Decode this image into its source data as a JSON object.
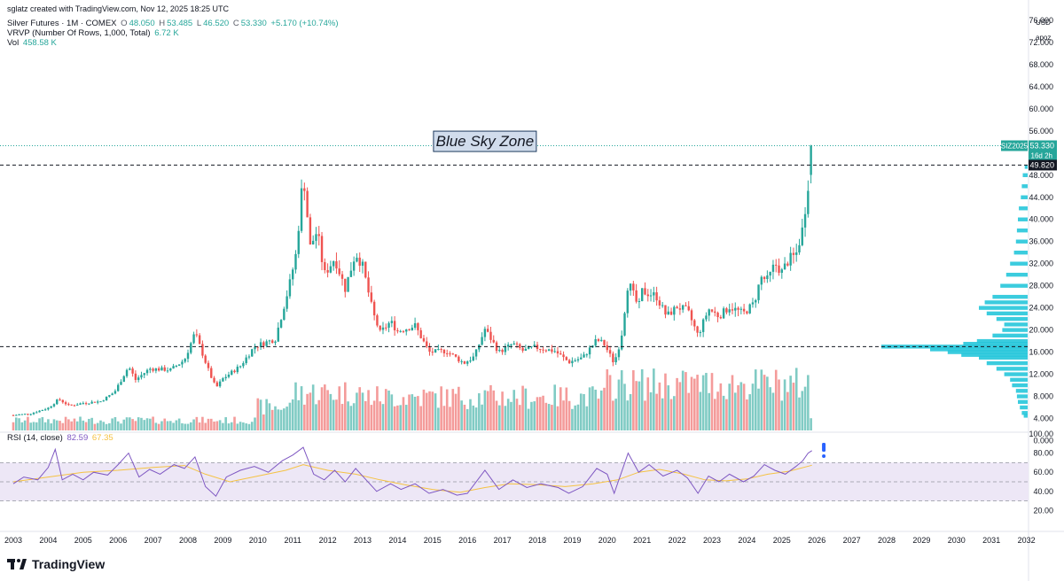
{
  "header": {
    "caption": "sglatz created with TradingView.com, Nov 12, 2025 18:25 UTC",
    "symbol": "Silver Futures · 1M · COMEX",
    "ohlc": {
      "o_label": "O",
      "o": "48.050",
      "h_label": "H",
      "h": "53.485",
      "l_label": "L",
      "l": "46.520",
      "c_label": "C",
      "c": "53.330",
      "change": "+5.170 (+10.74%)"
    },
    "vrvp_label": "VRVP (Number Of Rows, 1,000, Total)",
    "vrvp_value": "6.72 K",
    "vol_label": "Vol",
    "vol_value": "458.58 K",
    "rsi_label": "RSI (14, close)",
    "rsi_value": "82.59",
    "rsi_ma_value": "67.35"
  },
  "price_scale": {
    "currency": "USD",
    "timezone": "apoz"
  },
  "brand": "TradingView",
  "colors": {
    "up": "#26a69a",
    "down": "#ef5350",
    "vol_up": "#80cbc4",
    "vol_down": "#f49b9a",
    "vrvp": "#26c6da",
    "rsi_line": "#7e57c2",
    "rsi_ma": "#f5c242",
    "rsi_band": "#ede7f6",
    "annotation_bg": "#d1dcec",
    "annotation_border": "#1e3a5f",
    "marker_blue": "#2962ff"
  },
  "chart_data": {
    "type": "candlestick",
    "symbol": "SIZ2025",
    "interval": "1M",
    "y_axis": {
      "min": 2,
      "max": 78,
      "ticks": [
        "76.000",
        "72.000",
        "68.000",
        "64.000",
        "60.000",
        "56.000",
        "52.000",
        "48.000",
        "44.000",
        "40.000",
        "36.000",
        "32.000",
        "28.000",
        "24.000",
        "20.000",
        "16.000",
        "12.000",
        "8.000",
        "4.000",
        "0.000"
      ]
    },
    "x_axis": {
      "labels": [
        "2003",
        "2004",
        "2005",
        "2006",
        "2007",
        "2008",
        "2009",
        "2010",
        "2011",
        "2012",
        "2013",
        "2014",
        "2015",
        "2016",
        "2017",
        "2018",
        "2019",
        "2020",
        "2021",
        "2022",
        "2023",
        "2024",
        "2025",
        "2026",
        "2027",
        "2028",
        "2029",
        "2030",
        "2031",
        "2032"
      ]
    },
    "price_path": [
      [
        2003.0,
        4.6
      ],
      [
        2003.5,
        4.9
      ],
      [
        2004.0,
        5.9
      ],
      [
        2004.3,
        7.5
      ],
      [
        2004.6,
        6.3
      ],
      [
        2005.0,
        6.8
      ],
      [
        2005.5,
        7.1
      ],
      [
        2005.9,
        8.8
      ],
      [
        2006.3,
        13.4
      ],
      [
        2006.5,
        11.0
      ],
      [
        2006.9,
        13.0
      ],
      [
        2007.5,
        12.8
      ],
      [
        2007.9,
        14.6
      ],
      [
        2008.2,
        19.5
      ],
      [
        2008.6,
        12.5
      ],
      [
        2008.8,
        9.5
      ],
      [
        2009.0,
        11.2
      ],
      [
        2009.5,
        13.5
      ],
      [
        2009.9,
        17.0
      ],
      [
        2010.5,
        18.4
      ],
      [
        2010.9,
        28.0
      ],
      [
        2011.1,
        34.0
      ],
      [
        2011.3,
        48.5
      ],
      [
        2011.5,
        35.0
      ],
      [
        2011.7,
        38.0
      ],
      [
        2011.9,
        30.0
      ],
      [
        2012.2,
        33.0
      ],
      [
        2012.5,
        27.5
      ],
      [
        2012.8,
        34.0
      ],
      [
        2013.0,
        31.5
      ],
      [
        2013.3,
        23.0
      ],
      [
        2013.5,
        19.5
      ],
      [
        2013.8,
        21.5
      ],
      [
        2014.0,
        19.8
      ],
      [
        2014.5,
        20.8
      ],
      [
        2014.9,
        16.0
      ],
      [
        2015.4,
        16.2
      ],
      [
        2015.9,
        14.0
      ],
      [
        2016.2,
        15.2
      ],
      [
        2016.5,
        20.2
      ],
      [
        2016.9,
        16.0
      ],
      [
        2017.3,
        17.5
      ],
      [
        2017.6,
        16.2
      ],
      [
        2017.9,
        16.9
      ],
      [
        2018.5,
        16.2
      ],
      [
        2018.9,
        14.2
      ],
      [
        2019.3,
        15.0
      ],
      [
        2019.7,
        18.2
      ],
      [
        2019.9,
        17.6
      ],
      [
        2020.2,
        14.0
      ],
      [
        2020.4,
        18.5
      ],
      [
        2020.6,
        28.8
      ],
      [
        2020.9,
        24.0
      ],
      [
        2021.0,
        27.0
      ],
      [
        2021.4,
        26.2
      ],
      [
        2021.7,
        22.5
      ],
      [
        2022.0,
        24.2
      ],
      [
        2022.3,
        23.5
      ],
      [
        2022.6,
        19.0
      ],
      [
        2022.9,
        23.8
      ],
      [
        2023.2,
        22.5
      ],
      [
        2023.5,
        24.2
      ],
      [
        2023.9,
        23.0
      ],
      [
        2024.2,
        24.8
      ],
      [
        2024.4,
        29.5
      ],
      [
        2024.6,
        29.0
      ],
      [
        2024.8,
        32.0
      ],
      [
        2025.0,
        30.5
      ],
      [
        2025.2,
        32.8
      ],
      [
        2025.4,
        33.5
      ],
      [
        2025.5,
        36.0
      ],
      [
        2025.6,
        38.5
      ],
      [
        2025.75,
        46.5
      ],
      [
        2025.83,
        48.05
      ],
      [
        2025.86,
        53.33
      ]
    ],
    "last_candle": {
      "open": 48.05,
      "high": 53.485,
      "low": 46.52,
      "close": 53.33
    },
    "last_price_label": "53.330",
    "last_price_symbol": "SIZ2025",
    "countdown": "16d 2h",
    "horizontal_lines": [
      {
        "value": 49.82,
        "label": "49.820"
      },
      {
        "value": 17.0
      }
    ],
    "annotation": {
      "text": "Blue Sky Zone",
      "x": 2016.5,
      "y": 54.2
    },
    "vrvp_profile": [
      [
        49.5,
        0.15
      ],
      [
        48,
        0.25
      ],
      [
        46,
        0.3
      ],
      [
        44,
        0.35
      ],
      [
        42,
        0.45
      ],
      [
        40,
        0.5
      ],
      [
        38,
        0.55
      ],
      [
        36,
        0.6
      ],
      [
        34,
        0.7
      ],
      [
        32,
        0.9
      ],
      [
        30,
        1.1
      ],
      [
        28,
        1.4
      ],
      [
        26,
        1.8
      ],
      [
        25,
        2.2
      ],
      [
        24,
        2.5
      ],
      [
        23,
        2.1
      ],
      [
        22,
        1.6
      ],
      [
        21,
        1.2
      ],
      [
        20,
        1.3
      ],
      [
        19,
        1.8
      ],
      [
        18,
        2.6
      ],
      [
        17.5,
        3.3
      ],
      [
        17,
        7.5
      ],
      [
        16.5,
        5.0
      ],
      [
        16,
        4.1
      ],
      [
        15.5,
        3.4
      ],
      [
        15,
        2.5
      ],
      [
        14,
        2.1
      ],
      [
        13,
        1.6
      ],
      [
        12,
        1.2
      ],
      [
        11,
        0.9
      ],
      [
        10,
        0.8
      ],
      [
        9,
        0.6
      ],
      [
        8,
        0.55
      ],
      [
        7,
        0.5
      ],
      [
        6,
        0.4
      ],
      [
        5,
        0.3
      ],
      [
        4.5,
        0.2
      ]
    ],
    "volume_note": "volume bars follow candle direction",
    "rsi": {
      "levels": [
        70,
        50,
        30
      ],
      "y_axis": [
        "100.00",
        "80.00",
        "60.00",
        "40.00",
        "20.00"
      ],
      "path": [
        [
          2003.0,
          48
        ],
        [
          2003.3,
          55
        ],
        [
          2003.7,
          52
        ],
        [
          2004.0,
          65
        ],
        [
          2004.2,
          84
        ],
        [
          2004.4,
          52
        ],
        [
          2004.7,
          58
        ],
        [
          2005.0,
          52
        ],
        [
          2005.3,
          60
        ],
        [
          2005.7,
          57
        ],
        [
          2006.0,
          68
        ],
        [
          2006.3,
          80
        ],
        [
          2006.6,
          55
        ],
        [
          2006.9,
          63
        ],
        [
          2007.2,
          58
        ],
        [
          2007.6,
          68
        ],
        [
          2007.9,
          64
        ],
        [
          2008.2,
          76
        ],
        [
          2008.5,
          45
        ],
        [
          2008.8,
          35
        ],
        [
          2009.1,
          55
        ],
        [
          2009.5,
          62
        ],
        [
          2009.9,
          66
        ],
        [
          2010.3,
          60
        ],
        [
          2010.7,
          72
        ],
        [
          2011.0,
          78
        ],
        [
          2011.3,
          86
        ],
        [
          2011.6,
          58
        ],
        [
          2011.9,
          52
        ],
        [
          2012.2,
          62
        ],
        [
          2012.5,
          50
        ],
        [
          2012.8,
          64
        ],
        [
          2013.1,
          52
        ],
        [
          2013.4,
          40
        ],
        [
          2013.8,
          48
        ],
        [
          2014.1,
          42
        ],
        [
          2014.5,
          48
        ],
        [
          2014.9,
          38
        ],
        [
          2015.3,
          42
        ],
        [
          2015.7,
          36
        ],
        [
          2016.0,
          38
        ],
        [
          2016.5,
          62
        ],
        [
          2016.9,
          42
        ],
        [
          2017.3,
          52
        ],
        [
          2017.7,
          44
        ],
        [
          2018.1,
          48
        ],
        [
          2018.6,
          44
        ],
        [
          2018.9,
          38
        ],
        [
          2019.3,
          45
        ],
        [
          2019.7,
          64
        ],
        [
          2020.0,
          58
        ],
        [
          2020.2,
          38
        ],
        [
          2020.6,
          80
        ],
        [
          2020.9,
          60
        ],
        [
          2021.2,
          68
        ],
        [
          2021.6,
          56
        ],
        [
          2022.0,
          62
        ],
        [
          2022.3,
          54
        ],
        [
          2022.6,
          38
        ],
        [
          2022.9,
          56
        ],
        [
          2023.2,
          50
        ],
        [
          2023.5,
          58
        ],
        [
          2023.9,
          50
        ],
        [
          2024.2,
          56
        ],
        [
          2024.5,
          68
        ],
        [
          2024.8,
          62
        ],
        [
          2025.1,
          58
        ],
        [
          2025.4,
          66
        ],
        [
          2025.6,
          72
        ],
        [
          2025.75,
          80
        ],
        [
          2025.86,
          82.59
        ]
      ],
      "ma_path": [
        [
          2003.0,
          50
        ],
        [
          2004.0,
          55
        ],
        [
          2005.0,
          60
        ],
        [
          2006.0,
          62
        ],
        [
          2007.0,
          65
        ],
        [
          2007.9,
          67
        ],
        [
          2008.5,
          58
        ],
        [
          2009.2,
          50
        ],
        [
          2010.0,
          56
        ],
        [
          2010.8,
          62
        ],
        [
          2011.3,
          68
        ],
        [
          2012.0,
          62
        ],
        [
          2012.8,
          58
        ],
        [
          2013.5,
          52
        ],
        [
          2014.2,
          47
        ],
        [
          2015.0,
          42
        ],
        [
          2015.8,
          39
        ],
        [
          2016.5,
          44
        ],
        [
          2017.2,
          48
        ],
        [
          2018.0,
          47
        ],
        [
          2018.8,
          45
        ],
        [
          2019.6,
          48
        ],
        [
          2020.3,
          52
        ],
        [
          2020.9,
          60
        ],
        [
          2021.5,
          63
        ],
        [
          2022.2,
          58
        ],
        [
          2022.8,
          52
        ],
        [
          2023.4,
          51
        ],
        [
          2024.0,
          53
        ],
        [
          2024.6,
          58
        ],
        [
          2025.2,
          61
        ],
        [
          2025.86,
          67.35
        ]
      ]
    }
  }
}
